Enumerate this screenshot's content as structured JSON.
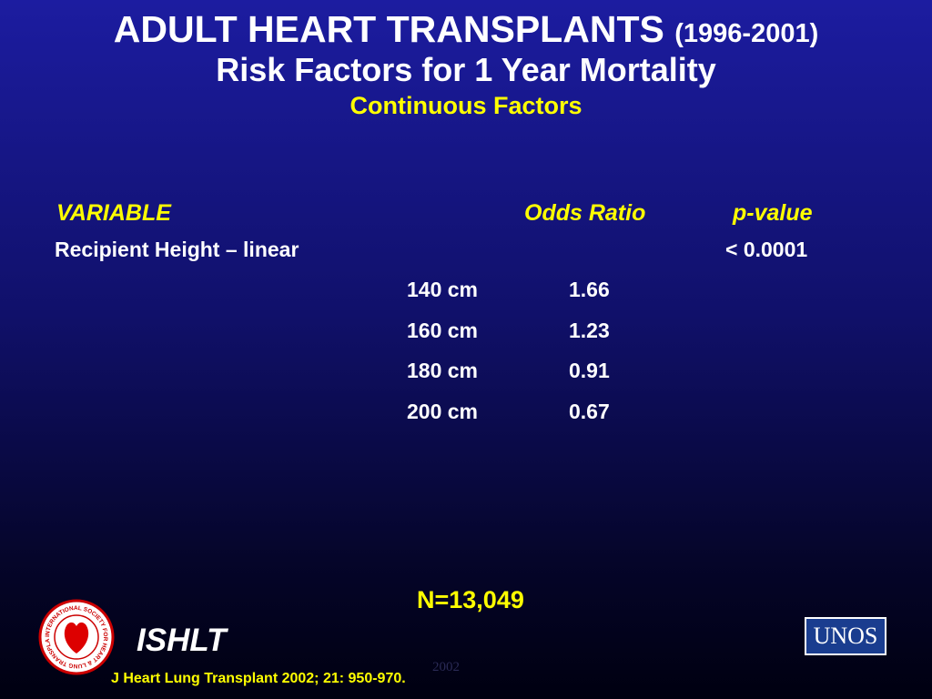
{
  "header": {
    "title": "ADULT HEART TRANSPLANTS",
    "years": "(1996-2001)",
    "subtitle": "Risk Factors for 1 Year Mortality",
    "section": "Continuous Factors"
  },
  "table": {
    "columns": [
      "VARIABLE",
      "Odds Ratio",
      "p-value"
    ],
    "variable": "Recipient Height – linear",
    "p_value": "< 0.0001",
    "rows": [
      [
        "140 cm",
        "1.66"
      ],
      [
        "160 cm",
        "1.23"
      ],
      [
        "180 cm",
        "0.91"
      ],
      [
        "200 cm",
        "0.67"
      ]
    ]
  },
  "footer": {
    "n": "N=13,049",
    "org": "ISHLT",
    "citation": "J Heart Lung Transplant 2002; 21: 950-970.",
    "year": "2002",
    "unos": "UNOS",
    "logo_text": "INTERNATIONAL SOCIETY FOR HEART & LUNG TRANSPLANTATION"
  }
}
